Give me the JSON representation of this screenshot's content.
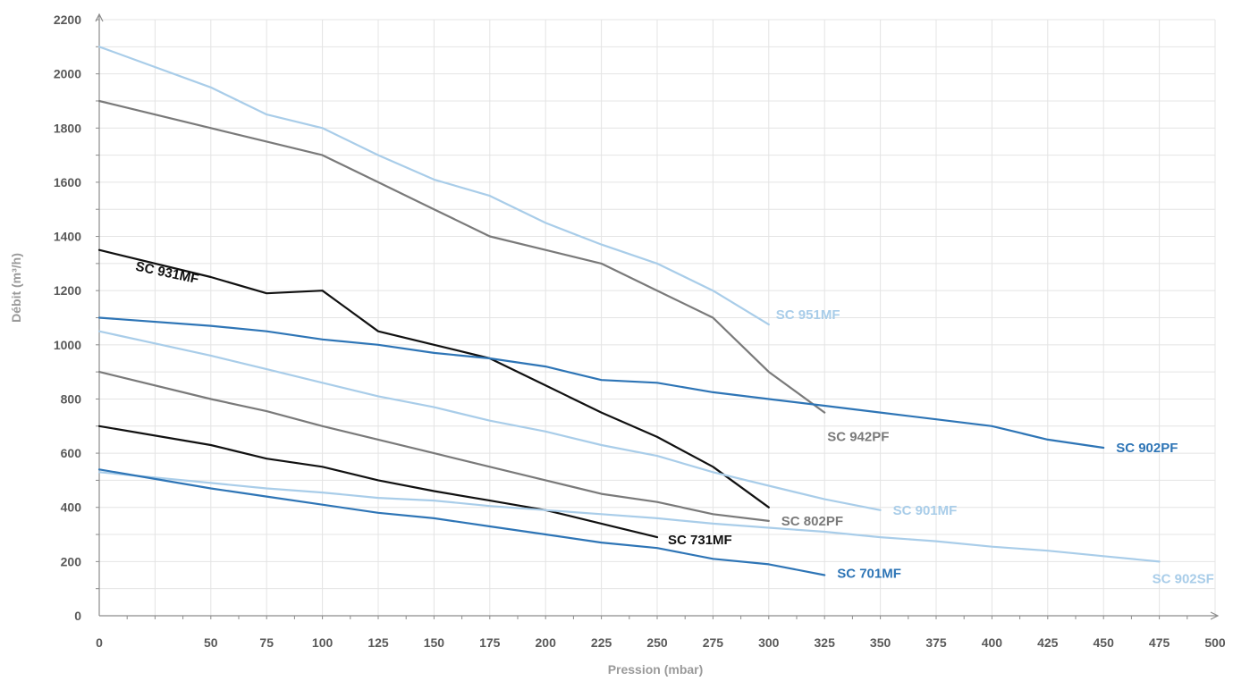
{
  "chart_data": {
    "type": "line",
    "title": "",
    "xlabel": "Pression (mbar)",
    "ylabel": "Débit (m³/h)",
    "xlim": [
      0,
      500
    ],
    "ylim": [
      0,
      2200
    ],
    "x_ticks": [
      0,
      50,
      75,
      100,
      125,
      150,
      175,
      200,
      225,
      250,
      275,
      300,
      325,
      350,
      375,
      400,
      425,
      450,
      475,
      500
    ],
    "x_tick_labels": [
      "0",
      "50",
      "75",
      "100",
      "125",
      "150",
      "175",
      "200",
      "225",
      "250",
      "275",
      "300",
      "325",
      "350",
      "375",
      "400",
      "425",
      "450",
      "475",
      "500"
    ],
    "y_ticks": [
      0,
      200,
      400,
      600,
      800,
      1000,
      1200,
      1400,
      1600,
      1800,
      2000,
      2200
    ],
    "y_tick_labels": [
      "0",
      "200",
      "400",
      "600",
      "800",
      "1000",
      "1200",
      "1400",
      "1600",
      "1800",
      "2000",
      "2200"
    ],
    "grid": true,
    "legend": "none",
    "series": [
      {
        "name": "SC 951MF",
        "color": "#a9cde9",
        "x": [
          0,
          50,
          75,
          100,
          125,
          150,
          175,
          200,
          225,
          250,
          275,
          300
        ],
        "values": [
          2100,
          1950,
          1850,
          1800,
          1700,
          1610,
          1550,
          1450,
          1370,
          1300,
          1200,
          1075
        ]
      },
      {
        "name": "SC 942PF",
        "color": "#7a7a7a",
        "x": [
          0,
          50,
          75,
          100,
          125,
          150,
          175,
          200,
          225,
          250,
          275,
          300,
          325
        ],
        "values": [
          1900,
          1800,
          1750,
          1700,
          1600,
          1500,
          1400,
          1350,
          1300,
          1200,
          1100,
          900,
          750
        ]
      },
      {
        "name": "SC 931MF",
        "color": "#111111",
        "x": [
          0,
          50,
          75,
          100,
          125,
          150,
          175,
          200,
          225,
          250,
          275,
          300
        ],
        "values": [
          1350,
          1250,
          1190,
          1200,
          1050,
          1000,
          950,
          850,
          750,
          660,
          550,
          400
        ]
      },
      {
        "name": "SC 902PF",
        "color": "#2e75b6",
        "x": [
          0,
          50,
          75,
          100,
          125,
          150,
          175,
          200,
          225,
          250,
          275,
          300,
          325,
          350,
          375,
          400,
          425,
          450
        ],
        "values": [
          1100,
          1070,
          1050,
          1020,
          1000,
          970,
          950,
          920,
          870,
          860,
          825,
          800,
          775,
          750,
          725,
          700,
          650,
          620
        ]
      },
      {
        "name": "SC 901MF",
        "color": "#a9cde9",
        "x": [
          0,
          50,
          75,
          100,
          125,
          150,
          175,
          200,
          225,
          250,
          275,
          300,
          325,
          350
        ],
        "values": [
          1050,
          960,
          910,
          860,
          810,
          770,
          720,
          680,
          630,
          590,
          530,
          480,
          430,
          390
        ]
      },
      {
        "name": "SC 802PF",
        "color": "#7a7a7a",
        "x": [
          0,
          50,
          75,
          100,
          125,
          150,
          175,
          200,
          225,
          250,
          275,
          300
        ],
        "values": [
          900,
          800,
          755,
          700,
          650,
          600,
          550,
          500,
          450,
          420,
          375,
          350
        ]
      },
      {
        "name": "SC 731MF",
        "color": "#111111",
        "x": [
          0,
          50,
          75,
          100,
          125,
          150,
          175,
          200,
          225,
          250
        ],
        "values": [
          700,
          630,
          580,
          550,
          500,
          460,
          425,
          390,
          340,
          290
        ]
      },
      {
        "name": "SC 902SF",
        "color": "#a9cde9",
        "x": [
          0,
          50,
          75,
          100,
          125,
          150,
          175,
          200,
          225,
          250,
          275,
          300,
          325,
          350,
          375,
          400,
          425,
          450,
          475
        ],
        "values": [
          530,
          490,
          470,
          455,
          435,
          425,
          405,
          390,
          375,
          360,
          340,
          325,
          310,
          290,
          275,
          255,
          240,
          220,
          200
        ]
      },
      {
        "name": "SC 701MF",
        "color": "#2e75b6",
        "x": [
          0,
          50,
          75,
          100,
          125,
          150,
          175,
          200,
          225,
          250,
          275,
          300,
          325
        ],
        "values": [
          540,
          470,
          440,
          410,
          380,
          360,
          330,
          300,
          270,
          250,
          210,
          190,
          150
        ]
      }
    ]
  }
}
